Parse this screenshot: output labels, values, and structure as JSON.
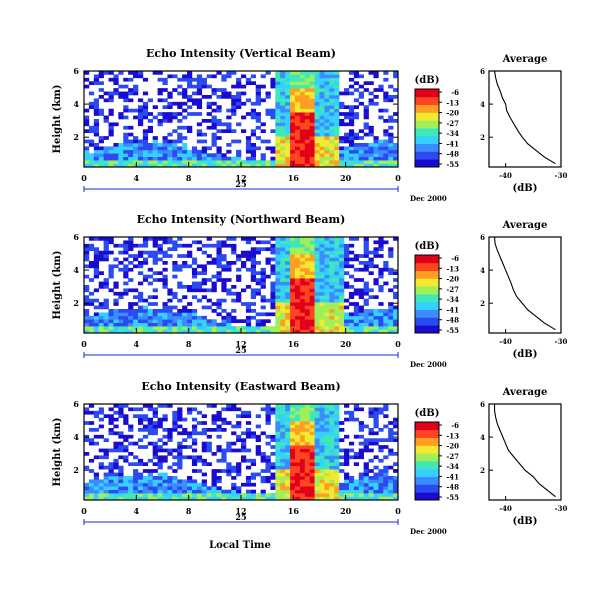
{
  "figure": {
    "x_axis_label": "Local Time",
    "day_label": "25",
    "month_year_label": "Dec 2000"
  },
  "chart_data": [
    {
      "type": "heatmap",
      "title": "Echo Intensity (Vertical Beam)",
      "ylabel": "Height (km)",
      "x_ticks": [
        "0",
        "4",
        "8",
        "12",
        "16",
        "20",
        "0"
      ],
      "y_ticks": [
        "2",
        "4",
        "6"
      ],
      "xlim": [
        0,
        24
      ],
      "ylim": [
        0.2,
        6
      ],
      "colorbar": {
        "unit": "(dB)",
        "ticks": [
          "-6",
          "-13",
          "-20",
          "-27",
          "-34",
          "-41",
          "-48",
          "-55"
        ]
      },
      "colormap": [
        "#1a0bd0",
        "#2b4bf0",
        "#3a8cff",
        "#35d0ff",
        "#3fe8b8",
        "#a0ee5a",
        "#f3e930",
        "#ff9e22",
        "#ff4420",
        "#e0001a"
      ],
      "bright_band_hours": [
        14.5,
        19.5
      ],
      "average_profile": {
        "title": "Average",
        "xlabel": "(dB)",
        "x_ticks": [
          "-40",
          "-30"
        ],
        "y_ticks": [
          "2",
          "4",
          "6"
        ],
        "xlim": [
          -43,
          -30
        ],
        "ylim": [
          0.2,
          6
        ],
        "height": [
          6.0,
          5.6,
          5.2,
          4.8,
          4.4,
          4.0,
          3.6,
          3.2,
          2.8,
          2.4,
          2.0,
          1.6,
          1.2,
          0.8,
          0.4
        ],
        "db": [
          -42.0,
          -41.8,
          -41.5,
          -41.0,
          -40.6,
          -40.0,
          -39.8,
          -39.2,
          -38.5,
          -37.8,
          -37.0,
          -36.0,
          -34.5,
          -33.0,
          -31.0
        ]
      }
    },
    {
      "type": "heatmap",
      "title": "Echo Intensity (Northward Beam)",
      "ylabel": "Height (km)",
      "x_ticks": [
        "0",
        "4",
        "8",
        "12",
        "16",
        "20",
        "0"
      ],
      "y_ticks": [
        "2",
        "4",
        "6"
      ],
      "xlim": [
        0,
        24
      ],
      "ylim": [
        0.2,
        6
      ],
      "colorbar": {
        "unit": "(dB)",
        "ticks": [
          "-6",
          "-13",
          "-20",
          "-27",
          "-34",
          "-41",
          "-48",
          "-55"
        ]
      },
      "colormap": [
        "#1a0bd0",
        "#2b4bf0",
        "#3a8cff",
        "#35d0ff",
        "#3fe8b8",
        "#a0ee5a",
        "#f3e930",
        "#ff9e22",
        "#ff4420",
        "#e0001a"
      ],
      "bright_band_hours": [
        14.5,
        20
      ],
      "average_profile": {
        "title": "Average",
        "xlabel": "(dB)",
        "x_ticks": [
          "-40",
          "-30"
        ],
        "y_ticks": [
          "2",
          "4",
          "6"
        ],
        "xlim": [
          -43,
          -30
        ],
        "ylim": [
          0.2,
          6
        ],
        "height": [
          6.0,
          5.6,
          5.2,
          4.8,
          4.4,
          4.0,
          3.6,
          3.2,
          2.8,
          2.4,
          2.0,
          1.6,
          1.2,
          0.8,
          0.4
        ],
        "db": [
          -42.0,
          -41.9,
          -41.5,
          -41.0,
          -40.5,
          -40.0,
          -39.5,
          -39.0,
          -38.6,
          -38.0,
          -37.0,
          -36.0,
          -34.5,
          -33.0,
          -31.0
        ]
      }
    },
    {
      "type": "heatmap",
      "title": "Echo Intensity (Eastward Beam)",
      "ylabel": "Height (km)",
      "x_ticks": [
        "0",
        "4",
        "8",
        "12",
        "16",
        "20",
        "0"
      ],
      "y_ticks": [
        "2",
        "4",
        "6"
      ],
      "xlim": [
        0,
        24
      ],
      "ylim": [
        0.2,
        6
      ],
      "colorbar": {
        "unit": "(dB)",
        "ticks": [
          "-6",
          "-13",
          "-20",
          "-27",
          "-34",
          "-41",
          "-48",
          "-55"
        ]
      },
      "colormap": [
        "#1a0bd0",
        "#2b4bf0",
        "#3a8cff",
        "#35d0ff",
        "#3fe8b8",
        "#a0ee5a",
        "#f3e930",
        "#ff9e22",
        "#ff4420",
        "#e0001a"
      ],
      "bright_band_hours": [
        14.5,
        19.5
      ],
      "average_profile": {
        "title": "Average",
        "xlabel": "(dB)",
        "x_ticks": [
          "-40",
          "-30"
        ],
        "y_ticks": [
          "2",
          "4",
          "6"
        ],
        "xlim": [
          -43,
          -30
        ],
        "ylim": [
          0.2,
          6
        ],
        "height": [
          6.0,
          5.6,
          5.2,
          4.8,
          4.4,
          4.0,
          3.6,
          3.2,
          2.8,
          2.4,
          2.0,
          1.6,
          1.2,
          0.8,
          0.4
        ],
        "db": [
          -42.0,
          -42.0,
          -41.8,
          -41.5,
          -41.0,
          -40.5,
          -40.0,
          -39.5,
          -38.5,
          -37.5,
          -36.5,
          -35.0,
          -34.0,
          -32.5,
          -31.0
        ]
      }
    }
  ]
}
